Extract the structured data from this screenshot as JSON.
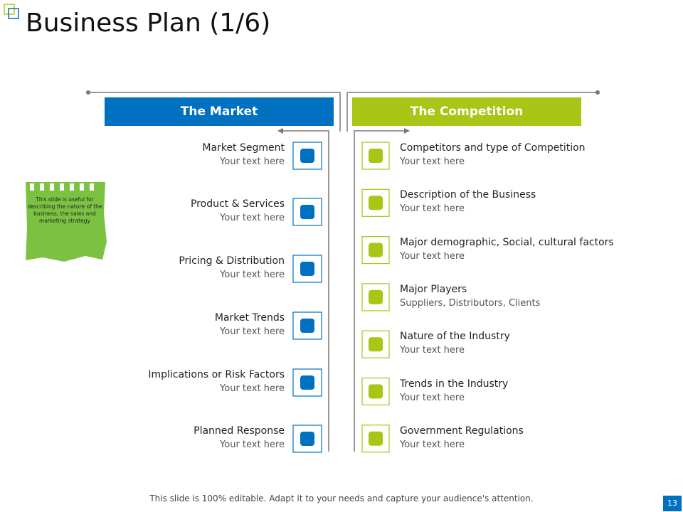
{
  "header": {
    "title": "Business Plan (1/6)"
  },
  "market": {
    "heading": "The Market",
    "items": [
      {
        "title": "Market Segment",
        "text": "Your text here"
      },
      {
        "title": "Product & Services",
        "text": "Your text here"
      },
      {
        "title": "Pricing & Distribution",
        "text": "Your text here"
      },
      {
        "title": "Market Trends",
        "text": "Your text here"
      },
      {
        "title": "Implications or Risk Factors",
        "text": "Your text here"
      },
      {
        "title": "Planned Response",
        "text": "Your text here"
      }
    ]
  },
  "competition": {
    "heading": "The Competition",
    "items": [
      {
        "title": "Competitors and type of Competition",
        "text": "Your text here"
      },
      {
        "title": "Description of the Business",
        "text": "Your text here"
      },
      {
        "title": "Major demographic, Social, cultural factors",
        "text": "Your text here"
      },
      {
        "title": "Major Players",
        "text": "Suppliers, Distributors, Clients"
      },
      {
        "title": "Nature of the Industry",
        "text": "Your text here"
      },
      {
        "title": "Trends in the Industry",
        "text": "Your text here"
      },
      {
        "title": "Government Regulations",
        "text": "Your text here"
      }
    ]
  },
  "note": "This slide is useful for describing the nature of the business, the sales and marketing strategy",
  "footer": {
    "text": "This slide is 100% editable. Adapt it to your needs and capture your audience's attention.",
    "page": "13"
  }
}
